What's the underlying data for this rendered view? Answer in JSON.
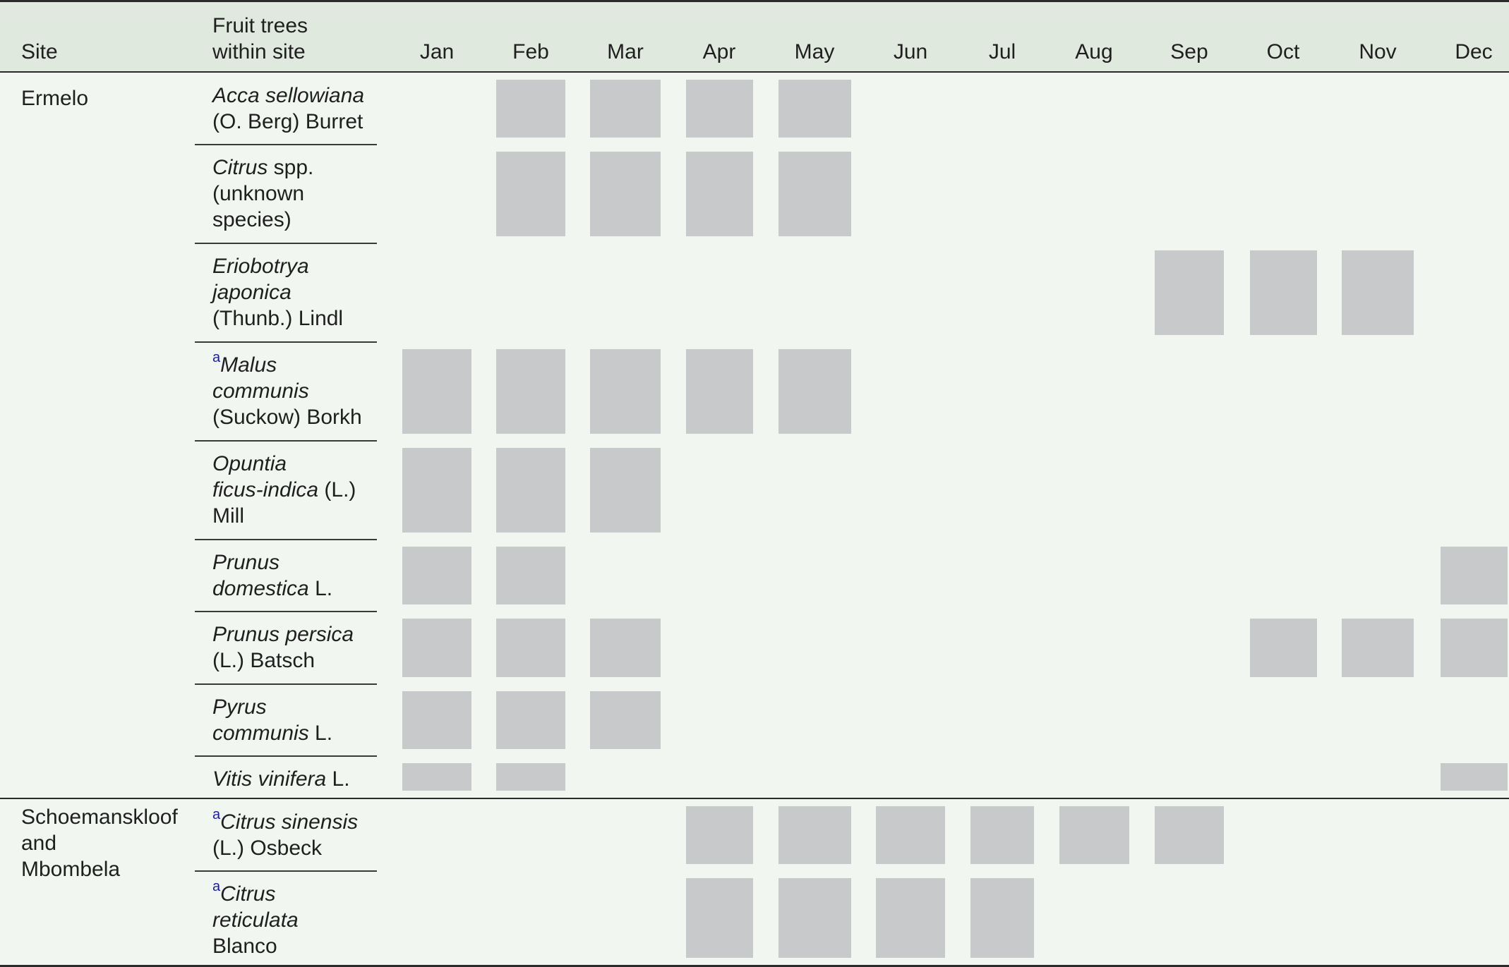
{
  "header": {
    "site": "Site",
    "trees_line1": "Fruit trees",
    "trees_line2": "within site",
    "months": [
      "Jan",
      "Feb",
      "Mar",
      "Apr",
      "May",
      "Jun",
      "Jul",
      "Aug",
      "Sep",
      "Oct",
      "Nov",
      "Dec"
    ]
  },
  "groups": [
    {
      "site_lines": [
        "Ermelo"
      ]
    },
    {
      "site_lines": [
        "Schoemanskloof",
        "and",
        "Mbombela"
      ]
    }
  ],
  "footnote_marker": "a",
  "rows": [
    {
      "lines": [
        [
          {
            "t": "Acca sellowiana",
            "i": true
          }
        ],
        [
          {
            "t": "(O. Berg) Burret"
          }
        ]
      ],
      "months": [
        2,
        3,
        4,
        5
      ]
    },
    {
      "lines": [
        [
          {
            "t": "Citrus",
            "i": true
          },
          {
            "t": " spp."
          }
        ],
        [
          {
            "t": "(unknown"
          }
        ],
        [
          {
            "t": "species)"
          }
        ]
      ],
      "months": [
        2,
        3,
        4,
        5
      ]
    },
    {
      "lines": [
        [
          {
            "t": "Eriobotrya",
            "i": true
          }
        ],
        [
          {
            "t": "japonica",
            "i": true
          }
        ],
        [
          {
            "t": "(Thunb.) Lindl"
          }
        ]
      ],
      "months": [
        9,
        10,
        11
      ]
    },
    {
      "marker": true,
      "lines": [
        [
          {
            "t": "Malus",
            "i": true
          }
        ],
        [
          {
            "t": "communis",
            "i": true
          }
        ],
        [
          {
            "t": "(Suckow) Borkh"
          }
        ]
      ],
      "months": [
        1,
        2,
        3,
        4,
        5
      ]
    },
    {
      "lines": [
        [
          {
            "t": "Opuntia",
            "i": true
          }
        ],
        [
          {
            "t": "ficus-indica",
            "i": true
          },
          {
            "t": " (L.)"
          }
        ],
        [
          {
            "t": "Mill"
          }
        ]
      ],
      "months": [
        1,
        2,
        3
      ]
    },
    {
      "lines": [
        [
          {
            "t": "Prunus",
            "i": true
          }
        ],
        [
          {
            "t": "domestica",
            "i": true
          },
          {
            "t": " L."
          }
        ]
      ],
      "months": [
        1,
        2,
        12
      ]
    },
    {
      "lines": [
        [
          {
            "t": "Prunus persica",
            "i": true
          }
        ],
        [
          {
            "t": "(L.) Batsch"
          }
        ]
      ],
      "months": [
        1,
        2,
        3,
        10,
        11,
        12
      ]
    },
    {
      "lines": [
        [
          {
            "t": "Pyrus",
            "i": true
          }
        ],
        [
          {
            "t": "communis",
            "i": true
          },
          {
            "t": " L."
          }
        ]
      ],
      "months": [
        1,
        2,
        3
      ]
    },
    {
      "lines": [
        [
          {
            "t": "Vitis vinifera",
            "i": true
          },
          {
            "t": " L."
          }
        ]
      ],
      "months": [
        1,
        2,
        12
      ]
    },
    {
      "marker": true,
      "lines": [
        [
          {
            "t": "Citrus sinensis",
            "i": true
          }
        ],
        [
          {
            "t": "(L.) Osbeck"
          }
        ]
      ],
      "months": [
        4,
        5,
        6,
        7,
        8,
        9
      ]
    },
    {
      "marker": true,
      "lines": [
        [
          {
            "t": "Citrus",
            "i": true
          }
        ],
        [
          {
            "t": "reticulata",
            "i": true
          }
        ],
        [
          {
            "t": "Blanco"
          }
        ]
      ],
      "months": [
        4,
        5,
        6,
        7
      ]
    }
  ]
}
